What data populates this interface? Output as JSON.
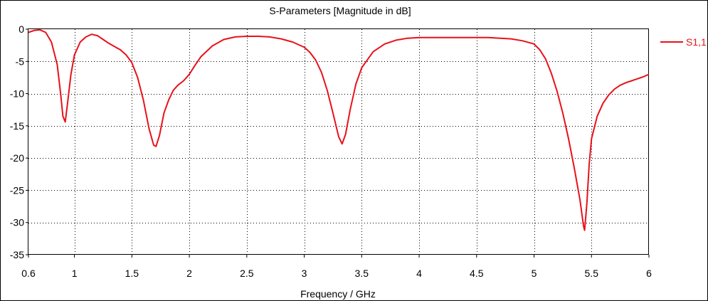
{
  "chart_data": {
    "type": "line",
    "title": "S-Parameters [Magnitude in dB]",
    "xlabel": "Frequency / GHz",
    "ylabel": "",
    "xlim": [
      0.6,
      6
    ],
    "ylim": [
      -35,
      0
    ],
    "x_ticks": [
      "0.6",
      "1",
      "1.5",
      "2",
      "2.5",
      "3",
      "3.5",
      "4",
      "4.5",
      "5",
      "5.5",
      "6"
    ],
    "x_tick_values": [
      0.6,
      1,
      1.5,
      2,
      2.5,
      3,
      3.5,
      4,
      4.5,
      5,
      5.5,
      6
    ],
    "y_ticks": [
      "0",
      "-5",
      "-10",
      "-15",
      "-20",
      "-25",
      "-30",
      "-35"
    ],
    "y_tick_values": [
      0,
      -5,
      -10,
      -15,
      -20,
      -25,
      -30,
      -35
    ],
    "grid": true,
    "legend_position": "top-right",
    "series": [
      {
        "name": "S1,1",
        "color": "#e8111b",
        "points": [
          [
            0.6,
            -0.5
          ],
          [
            0.65,
            -0.2
          ],
          [
            0.7,
            -0.1
          ],
          [
            0.75,
            -0.5
          ],
          [
            0.8,
            -2.0
          ],
          [
            0.85,
            -5.5
          ],
          [
            0.88,
            -10.0
          ],
          [
            0.9,
            -13.5
          ],
          [
            0.92,
            -14.4
          ],
          [
            0.94,
            -11.5
          ],
          [
            0.97,
            -7.0
          ],
          [
            1.0,
            -4.0
          ],
          [
            1.05,
            -2.0
          ],
          [
            1.1,
            -1.2
          ],
          [
            1.15,
            -0.8
          ],
          [
            1.2,
            -1.0
          ],
          [
            1.25,
            -1.6
          ],
          [
            1.3,
            -2.2
          ],
          [
            1.35,
            -2.7
          ],
          [
            1.4,
            -3.2
          ],
          [
            1.45,
            -4.0
          ],
          [
            1.5,
            -5.2
          ],
          [
            1.55,
            -7.5
          ],
          [
            1.6,
            -11.0
          ],
          [
            1.65,
            -15.5
          ],
          [
            1.69,
            -18.0
          ],
          [
            1.71,
            -18.2
          ],
          [
            1.74,
            -16.5
          ],
          [
            1.78,
            -13.0
          ],
          [
            1.82,
            -11.0
          ],
          [
            1.86,
            -9.5
          ],
          [
            1.9,
            -8.7
          ],
          [
            1.95,
            -8.0
          ],
          [
            2.0,
            -7.0
          ],
          [
            2.05,
            -5.6
          ],
          [
            2.1,
            -4.3
          ],
          [
            2.2,
            -2.6
          ],
          [
            2.3,
            -1.6
          ],
          [
            2.4,
            -1.2
          ],
          [
            2.5,
            -1.1
          ],
          [
            2.6,
            -1.1
          ],
          [
            2.7,
            -1.2
          ],
          [
            2.8,
            -1.5
          ],
          [
            2.9,
            -2.0
          ],
          [
            3.0,
            -2.8
          ],
          [
            3.05,
            -3.6
          ],
          [
            3.1,
            -4.8
          ],
          [
            3.15,
            -6.7
          ],
          [
            3.2,
            -9.5
          ],
          [
            3.25,
            -13.0
          ],
          [
            3.3,
            -16.7
          ],
          [
            3.33,
            -17.8
          ],
          [
            3.36,
            -16.3
          ],
          [
            3.4,
            -12.5
          ],
          [
            3.45,
            -8.5
          ],
          [
            3.5,
            -6.0
          ],
          [
            3.6,
            -3.5
          ],
          [
            3.7,
            -2.3
          ],
          [
            3.8,
            -1.7
          ],
          [
            3.9,
            -1.4
          ],
          [
            4.0,
            -1.3
          ],
          [
            4.2,
            -1.3
          ],
          [
            4.4,
            -1.3
          ],
          [
            4.6,
            -1.3
          ],
          [
            4.8,
            -1.5
          ],
          [
            4.9,
            -1.8
          ],
          [
            5.0,
            -2.3
          ],
          [
            5.05,
            -3.2
          ],
          [
            5.1,
            -4.6
          ],
          [
            5.15,
            -6.8
          ],
          [
            5.2,
            -9.6
          ],
          [
            5.25,
            -13.0
          ],
          [
            5.3,
            -17.0
          ],
          [
            5.35,
            -21.5
          ],
          [
            5.4,
            -26.5
          ],
          [
            5.43,
            -30.5
          ],
          [
            5.44,
            -31.2
          ],
          [
            5.46,
            -27.0
          ],
          [
            5.48,
            -21.0
          ],
          [
            5.5,
            -17.0
          ],
          [
            5.55,
            -13.5
          ],
          [
            5.6,
            -11.5
          ],
          [
            5.65,
            -10.2
          ],
          [
            5.7,
            -9.3
          ],
          [
            5.75,
            -8.7
          ],
          [
            5.8,
            -8.3
          ],
          [
            5.85,
            -8.0
          ],
          [
            5.9,
            -7.7
          ],
          [
            5.95,
            -7.4
          ],
          [
            6.0,
            -7.0
          ]
        ]
      }
    ]
  }
}
